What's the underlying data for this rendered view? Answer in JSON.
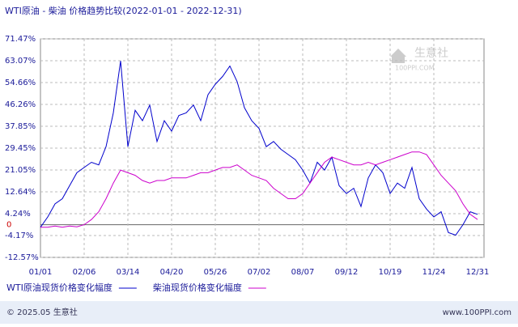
{
  "chart_data": {
    "type": "line",
    "title": "WTI原油 - 柴油 价格趋势比较(2022-01-01 - 2022-12-31)",
    "categories": [
      "01/01",
      null,
      null,
      null,
      null,
      null,
      "02/06",
      null,
      null,
      null,
      null,
      null,
      "03/14",
      null,
      null,
      null,
      null,
      null,
      "04/20",
      null,
      null,
      null,
      null,
      null,
      "05/26",
      null,
      null,
      null,
      null,
      null,
      "07/02",
      null,
      null,
      null,
      null,
      null,
      "08/07",
      null,
      null,
      null,
      null,
      null,
      "09/12",
      null,
      null,
      null,
      null,
      null,
      "10/19",
      null,
      null,
      null,
      null,
      null,
      "11/24",
      null,
      null,
      null,
      null,
      null,
      "12/31"
    ],
    "series": [
      {
        "name": "WTI原油现货价格变化幅度",
        "color": "#0000cc",
        "values": [
          -1,
          3,
          8,
          10,
          15,
          20,
          22,
          24,
          23,
          30,
          43,
          63,
          30,
          44,
          40,
          46,
          32,
          40,
          36,
          42,
          43,
          46,
          40,
          50,
          54,
          57,
          61,
          55,
          45,
          40,
          37,
          30,
          32,
          29,
          27,
          25,
          21,
          16,
          24,
          21,
          26,
          15,
          12,
          14,
          7,
          18,
          23,
          20,
          12,
          16,
          14,
          22,
          10,
          6,
          3,
          5,
          -3,
          -4,
          0,
          5,
          4
        ]
      },
      {
        "name": "柴油现货价格变化幅度",
        "color": "#cc00cc",
        "values": [
          -1,
          -1,
          -0.5,
          -1,
          -0.5,
          -0.8,
          0,
          2,
          5,
          10,
          16,
          21,
          20,
          19,
          17,
          16,
          17,
          17,
          18,
          18,
          18,
          19,
          20,
          20,
          21,
          22,
          22,
          23,
          21,
          19,
          18,
          17,
          14,
          12,
          10,
          10,
          12,
          16,
          20,
          24,
          26,
          25,
          24,
          23,
          23,
          24,
          23,
          24,
          25,
          26,
          27,
          28,
          28,
          27,
          23,
          19,
          16,
          13,
          8,
          4,
          2
        ]
      }
    ],
    "ylim": [
      -12.57,
      71.47
    ],
    "yticks": [
      {
        "value": -12.57,
        "label": "-12.57%"
      },
      {
        "value": -4.17,
        "label": "-4.17%"
      },
      0,
      {
        "value": 4.24,
        "label": "4.24%"
      },
      {
        "value": 12.64,
        "label": "12.64%"
      },
      {
        "value": 21.05,
        "label": "21.05%"
      },
      {
        "value": 29.45,
        "label": "29.45%"
      },
      {
        "value": 37.85,
        "label": "37.85%"
      },
      {
        "value": 46.26,
        "label": "46.26%"
      },
      {
        "value": 54.66,
        "label": "54.66%"
      },
      {
        "value": 63.07,
        "label": "63.07%"
      },
      {
        "value": 71.47,
        "label": "71.47%"
      }
    ],
    "grid": true
  },
  "watermark": {
    "brand": "生意社",
    "site": "100PPI.COM"
  },
  "footer": {
    "copyright": "© 2025.05 生意社",
    "site": "www.100PPI.com"
  }
}
